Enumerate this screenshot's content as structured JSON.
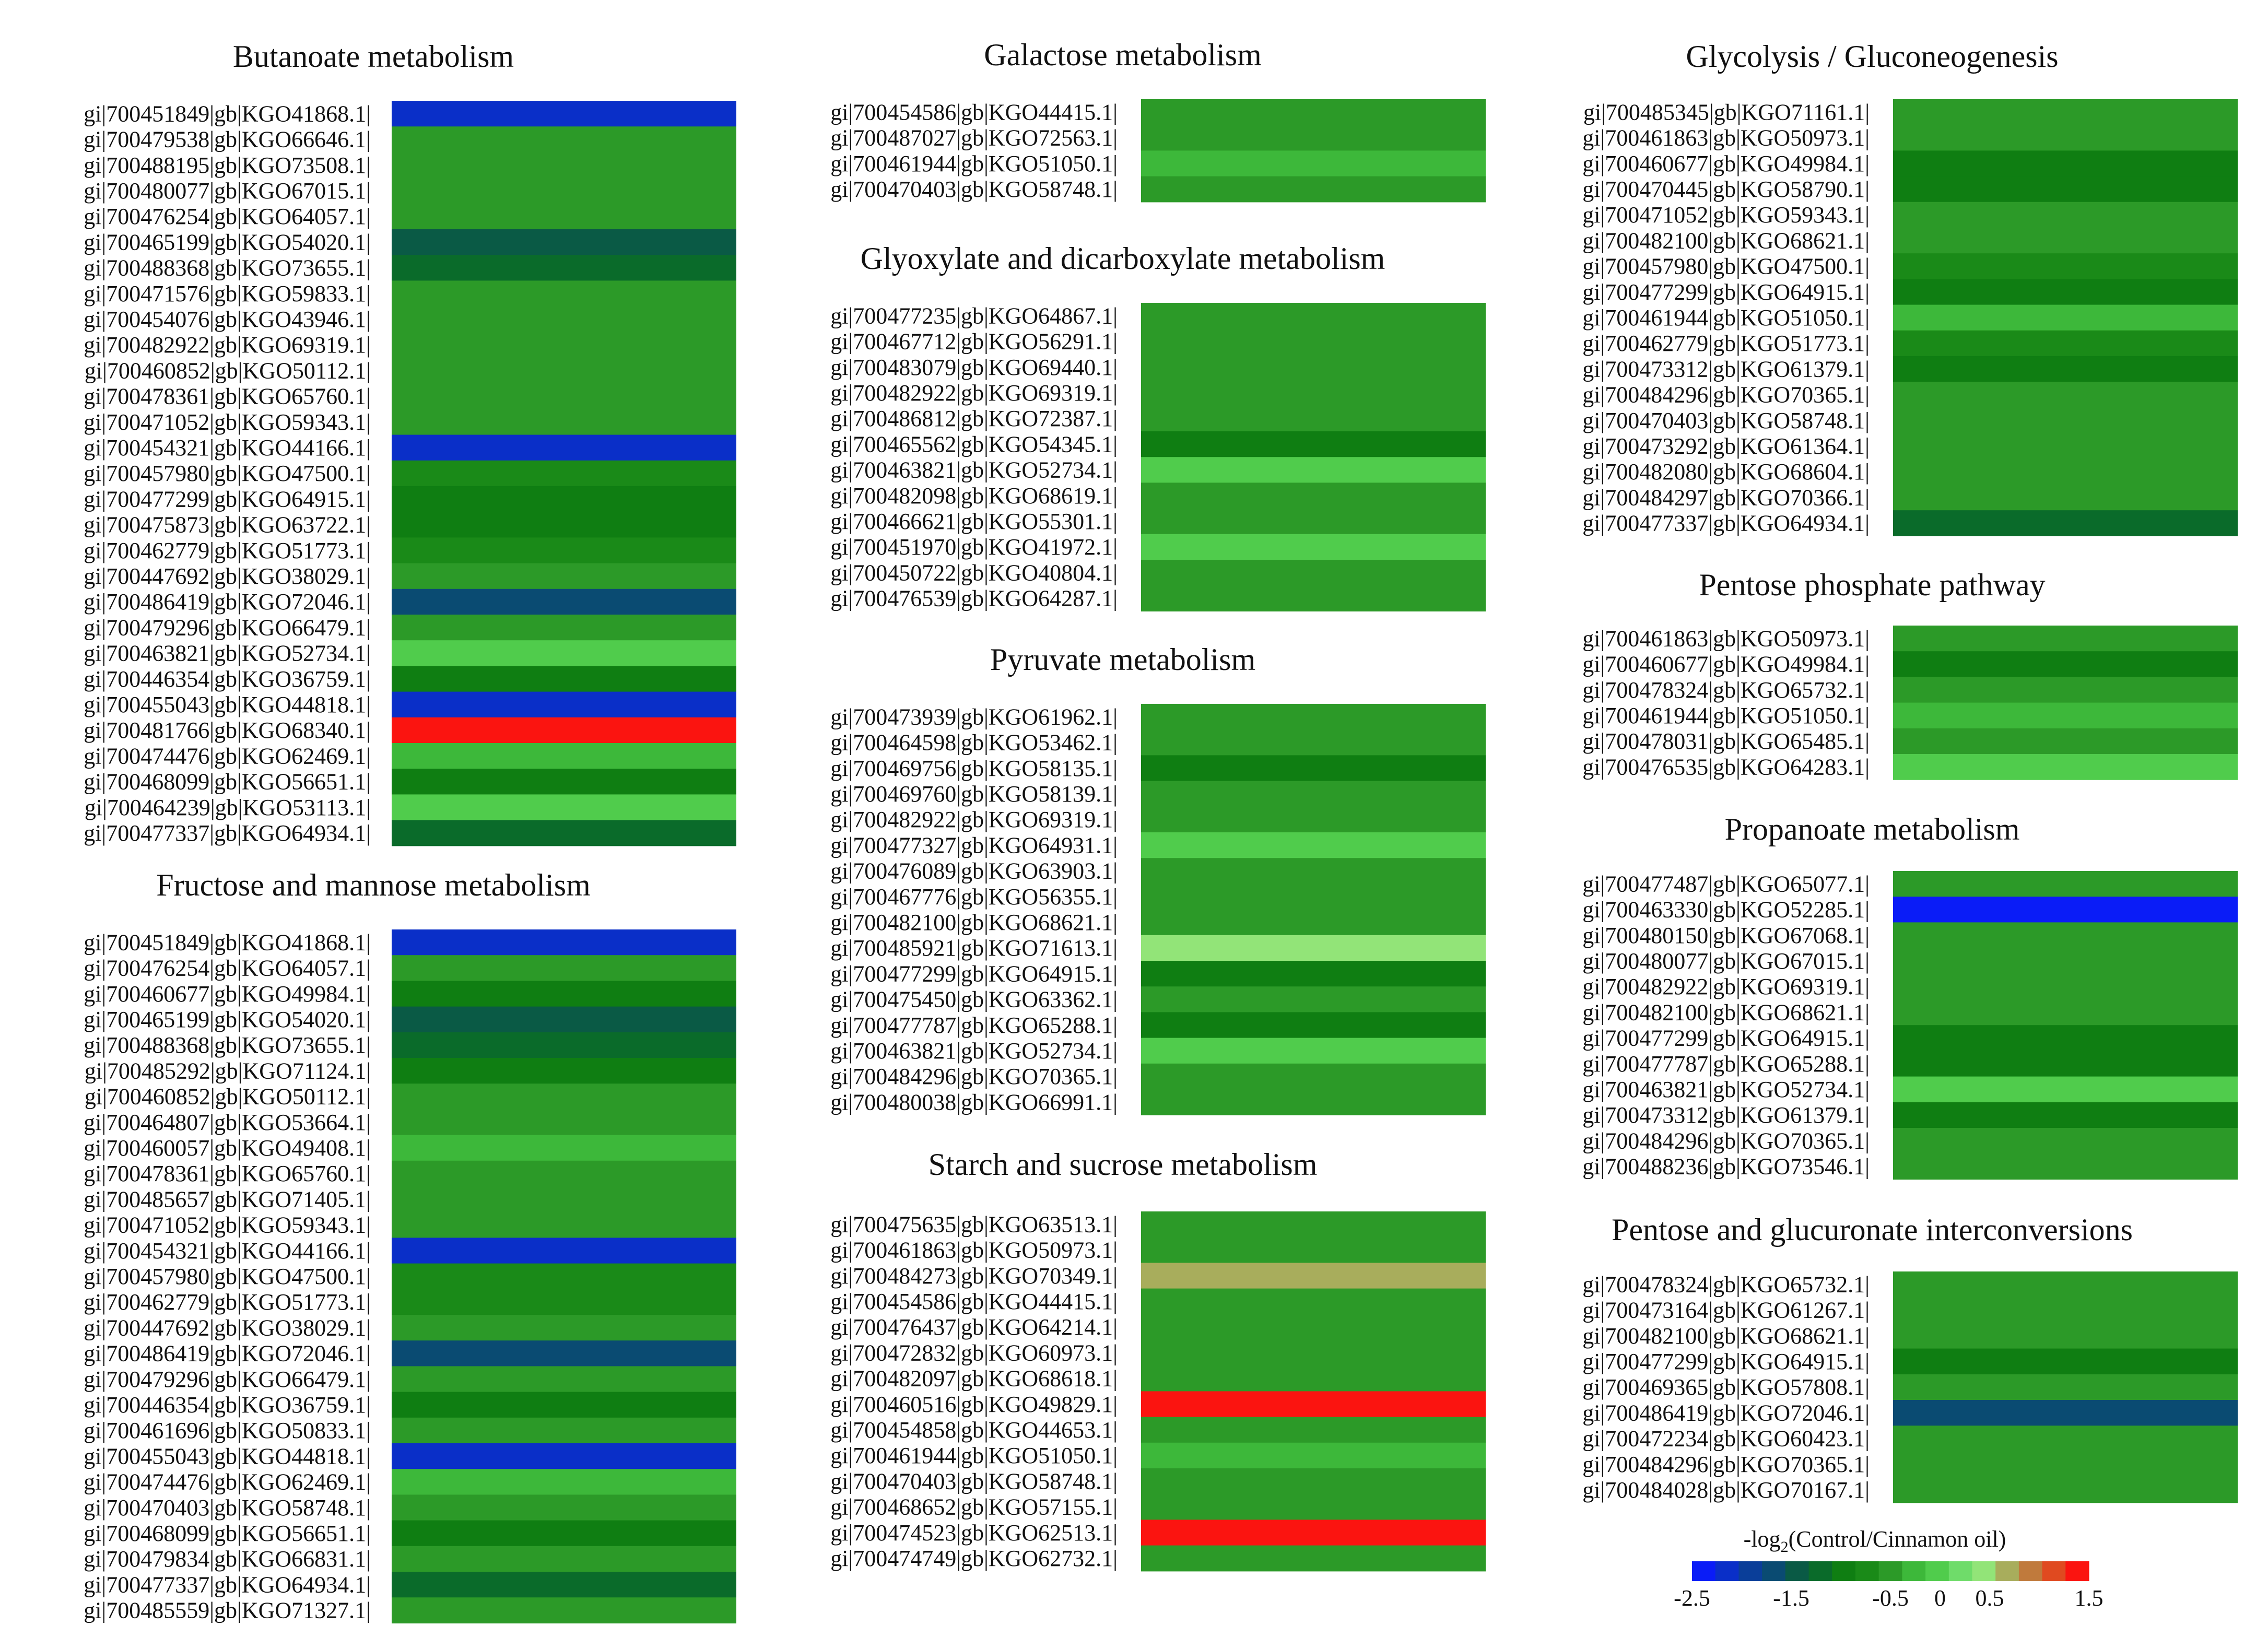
{
  "chart_data": {
    "type": "heatmap",
    "panels": [
      {
        "id": "butanoate",
        "title": "Butanoate metabolism",
        "rows": [
          {
            "label": "gi|700451849|gb|KGO41868.1|",
            "value": -2.3
          },
          {
            "label": "gi|700479538|gb|KGO66646.1|",
            "value": -0.6
          },
          {
            "label": "gi|700488195|gb|KGO73508.1|",
            "value": -0.4
          },
          {
            "label": "gi|700480077|gb|KGO67015.1|",
            "value": -0.4
          },
          {
            "label": "gi|700476254|gb|KGO64057.1|",
            "value": -0.4
          },
          {
            "label": "gi|700465199|gb|KGO54020.1|",
            "value": -1.6
          },
          {
            "label": "gi|700488368|gb|KGO73655.1|",
            "value": -1.3
          },
          {
            "label": "gi|700471576|gb|KGO59833.1|",
            "value": -0.6
          },
          {
            "label": "gi|700454076|gb|KGO43946.1|",
            "value": -0.6
          },
          {
            "label": "gi|700482922|gb|KGO69319.1|",
            "value": -0.6
          },
          {
            "label": "gi|700460852|gb|KGO50112.1|",
            "value": -0.6
          },
          {
            "label": "gi|700478361|gb|KGO65760.1|",
            "value": -0.6
          },
          {
            "label": "gi|700471052|gb|KGO59343.1|",
            "value": -0.4
          },
          {
            "label": "gi|700454321|gb|KGO44166.1|",
            "value": -2.3
          },
          {
            "label": "gi|700457980|gb|KGO47500.1|",
            "value": -0.7
          },
          {
            "label": "gi|700477299|gb|KGO64915.1|",
            "value": -1.0
          },
          {
            "label": "gi|700475873|gb|KGO63722.1|",
            "value": -1.0
          },
          {
            "label": "gi|700462779|gb|KGO51773.1|",
            "value": -0.7
          },
          {
            "label": "gi|700447692|gb|KGO38029.1|",
            "value": -0.5
          },
          {
            "label": "gi|700486419|gb|KGO72046.1|",
            "value": -1.7
          },
          {
            "label": "gi|700479296|gb|KGO66479.1|",
            "value": -0.4
          },
          {
            "label": "gi|700463821|gb|KGO52734.1|",
            "value": 0.1
          },
          {
            "label": "gi|700446354|gb|KGO36759.1|",
            "value": -1.0
          },
          {
            "label": "gi|700455043|gb|KGO44818.1|",
            "value": -2.3
          },
          {
            "label": "gi|700481766|gb|KGO68340.1|",
            "value": 1.5
          },
          {
            "label": "gi|700474476|gb|KGO62469.1|",
            "value": -0.2
          },
          {
            "label": "gi|700468099|gb|KGO56651.1|",
            "value": -1.0
          },
          {
            "label": "gi|700464239|gb|KGO53113.1|",
            "value": 0.1
          },
          {
            "label": "gi|700477337|gb|KGO64934.1|",
            "value": -1.3
          }
        ]
      },
      {
        "id": "fructose",
        "title": "Fructose and mannose metabolism",
        "rows": [
          {
            "label": "gi|700451849|gb|KGO41868.1|",
            "value": -2.3
          },
          {
            "label": "gi|700476254|gb|KGO64057.1|",
            "value": -0.4
          },
          {
            "label": "gi|700460677|gb|KGO49984.1|",
            "value": -1.0
          },
          {
            "label": "gi|700465199|gb|KGO54020.1|",
            "value": -1.6
          },
          {
            "label": "gi|700488368|gb|KGO73655.1|",
            "value": -1.3
          },
          {
            "label": "gi|700485292|gb|KGO71124.1|",
            "value": -1.0
          },
          {
            "label": "gi|700460852|gb|KGO50112.1|",
            "value": -0.6
          },
          {
            "label": "gi|700464807|gb|KGO53664.1|",
            "value": -0.6
          },
          {
            "label": "gi|700460057|gb|KGO49408.1|",
            "value": -0.2
          },
          {
            "label": "gi|700478361|gb|KGO65760.1|",
            "value": -0.6
          },
          {
            "label": "gi|700485657|gb|KGO71405.1|",
            "value": -0.4
          },
          {
            "label": "gi|700471052|gb|KGO59343.1|",
            "value": -0.4
          },
          {
            "label": "gi|700454321|gb|KGO44166.1|",
            "value": -2.3
          },
          {
            "label": "gi|700457980|gb|KGO47500.1|",
            "value": -0.7
          },
          {
            "label": "gi|700462779|gb|KGO51773.1|",
            "value": -0.7
          },
          {
            "label": "gi|700447692|gb|KGO38029.1|",
            "value": -0.5
          },
          {
            "label": "gi|700486419|gb|KGO72046.1|",
            "value": -1.7
          },
          {
            "label": "gi|700479296|gb|KGO66479.1|",
            "value": -0.4
          },
          {
            "label": "gi|700446354|gb|KGO36759.1|",
            "value": -1.0
          },
          {
            "label": "gi|700461696|gb|KGO50833.1|",
            "value": -0.6
          },
          {
            "label": "gi|700455043|gb|KGO44818.1|",
            "value": -2.3
          },
          {
            "label": "gi|700474476|gb|KGO62469.1|",
            "value": -0.2
          },
          {
            "label": "gi|700470403|gb|KGO58748.1|",
            "value": -0.4
          },
          {
            "label": "gi|700468099|gb|KGO56651.1|",
            "value": -1.0
          },
          {
            "label": "gi|700479834|gb|KGO66831.1|",
            "value": -0.6
          },
          {
            "label": "gi|700477337|gb|KGO64934.1|",
            "value": -1.3
          },
          {
            "label": "gi|700485559|gb|KGO71327.1|",
            "value": -0.4
          }
        ]
      },
      {
        "id": "galactose",
        "title": "Galactose metabolism",
        "rows": [
          {
            "label": "gi|700454586|gb|KGO44415.1|",
            "value": -0.6
          },
          {
            "label": "gi|700487027|gb|KGO72563.1|",
            "value": -0.6
          },
          {
            "label": "gi|700461944|gb|KGO51050.1|",
            "value": -0.2
          },
          {
            "label": "gi|700470403|gb|KGO58748.1|",
            "value": -0.4
          }
        ]
      },
      {
        "id": "glyoxylate",
        "title": "Glyoxylate and dicarboxylate metabolism",
        "rows": [
          {
            "label": "gi|700477235|gb|KGO64867.1|",
            "value": -0.6
          },
          {
            "label": "gi|700467712|gb|KGO56291.1|",
            "value": -0.4
          },
          {
            "label": "gi|700483079|gb|KGO69440.1|",
            "value": -0.6
          },
          {
            "label": "gi|700482922|gb|KGO69319.1|",
            "value": -0.6
          },
          {
            "label": "gi|700486812|gb|KGO72387.1|",
            "value": -0.4
          },
          {
            "label": "gi|700465562|gb|KGO54345.1|",
            "value": -1.0
          },
          {
            "label": "gi|700463821|gb|KGO52734.1|",
            "value": 0.1
          },
          {
            "label": "gi|700482098|gb|KGO68619.1|",
            "value": -0.6
          },
          {
            "label": "gi|700466621|gb|KGO55301.1|",
            "value": -0.4
          },
          {
            "label": "gi|700451970|gb|KGO41972.1|",
            "value": 0.1
          },
          {
            "label": "gi|700450722|gb|KGO40804.1|",
            "value": -0.4
          },
          {
            "label": "gi|700476539|gb|KGO64287.1|",
            "value": -0.6
          }
        ]
      },
      {
        "id": "pyruvate",
        "title": "Pyruvate metabolism",
        "rows": [
          {
            "label": "gi|700473939|gb|KGO61962.1|",
            "value": -0.4
          },
          {
            "label": "gi|700464598|gb|KGO53462.1|",
            "value": -0.6
          },
          {
            "label": "gi|700469756|gb|KGO58135.1|",
            "value": -1.0
          },
          {
            "label": "gi|700469760|gb|KGO58139.1|",
            "value": -0.6
          },
          {
            "label": "gi|700482922|gb|KGO69319.1|",
            "value": -0.6
          },
          {
            "label": "gi|700477327|gb|KGO64931.1|",
            "value": 0.1
          },
          {
            "label": "gi|700476089|gb|KGO63903.1|",
            "value": -0.6
          },
          {
            "label": "gi|700467776|gb|KGO56355.1|",
            "value": -0.4
          },
          {
            "label": "gi|700482100|gb|KGO68621.1|",
            "value": -0.4
          },
          {
            "label": "gi|700485921|gb|KGO71613.1|",
            "value": 0.5
          },
          {
            "label": "gi|700477299|gb|KGO64915.1|",
            "value": -1.0
          },
          {
            "label": "gi|700475450|gb|KGO63362.1|",
            "value": -0.6
          },
          {
            "label": "gi|700477787|gb|KGO65288.1|",
            "value": -1.0
          },
          {
            "label": "gi|700463821|gb|KGO52734.1|",
            "value": 0.1
          },
          {
            "label": "gi|700484296|gb|KGO70365.1|",
            "value": -0.6
          },
          {
            "label": "gi|700480038|gb|KGO66991.1|",
            "value": -0.6
          }
        ]
      },
      {
        "id": "starch",
        "title": "Starch and sucrose metabolism",
        "rows": [
          {
            "label": "gi|700475635|gb|KGO63513.1|",
            "value": -0.4
          },
          {
            "label": "gi|700461863|gb|KGO50973.1|",
            "value": -0.4
          },
          {
            "label": "gi|700484273|gb|KGO70349.1|",
            "value": 0.8
          },
          {
            "label": "gi|700454586|gb|KGO44415.1|",
            "value": -0.6
          },
          {
            "label": "gi|700476437|gb|KGO64214.1|",
            "value": -0.4
          },
          {
            "label": "gi|700472832|gb|KGO60973.1|",
            "value": -0.6
          },
          {
            "label": "gi|700482097|gb|KGO68618.1|",
            "value": -0.6
          },
          {
            "label": "gi|700460516|gb|KGO49829.1|",
            "value": 1.5
          },
          {
            "label": "gi|700454858|gb|KGO44653.1|",
            "value": -0.4
          },
          {
            "label": "gi|700461944|gb|KGO51050.1|",
            "value": -0.2
          },
          {
            "label": "gi|700470403|gb|KGO58748.1|",
            "value": -0.4
          },
          {
            "label": "gi|700468652|gb|KGO57155.1|",
            "value": -0.6
          },
          {
            "label": "gi|700474523|gb|KGO62513.1|",
            "value": 1.5
          },
          {
            "label": "gi|700474749|gb|KGO62732.1|",
            "value": -0.6
          }
        ]
      },
      {
        "id": "glycolysis",
        "title": "Glycolysis / Gluconeogenesis",
        "rows": [
          {
            "label": "gi|700485345|gb|KGO71161.1|",
            "value": -0.6
          },
          {
            "label": "gi|700461863|gb|KGO50973.1|",
            "value": -0.4
          },
          {
            "label": "gi|700460677|gb|KGO49984.1|",
            "value": -1.0
          },
          {
            "label": "gi|700470445|gb|KGO58790.1|",
            "value": -1.0
          },
          {
            "label": "gi|700471052|gb|KGO59343.1|",
            "value": -0.4
          },
          {
            "label": "gi|700482100|gb|KGO68621.1|",
            "value": -0.4
          },
          {
            "label": "gi|700457980|gb|KGO47500.1|",
            "value": -0.7
          },
          {
            "label": "gi|700477299|gb|KGO64915.1|",
            "value": -1.0
          },
          {
            "label": "gi|700461944|gb|KGO51050.1|",
            "value": -0.2
          },
          {
            "label": "gi|700462779|gb|KGO51773.1|",
            "value": -0.7
          },
          {
            "label": "gi|700473312|gb|KGO61379.1|",
            "value": -1.0
          },
          {
            "label": "gi|700484296|gb|KGO70365.1|",
            "value": -0.6
          },
          {
            "label": "gi|700470403|gb|KGO58748.1|",
            "value": -0.4
          },
          {
            "label": "gi|700473292|gb|KGO61364.1|",
            "value": -0.4
          },
          {
            "label": "gi|700482080|gb|KGO68604.1|",
            "value": -0.4
          },
          {
            "label": "gi|700484297|gb|KGO70366.1|",
            "value": -0.6
          },
          {
            "label": "gi|700477337|gb|KGO64934.1|",
            "value": -1.3
          }
        ]
      },
      {
        "id": "pentose_phosphate",
        "title": "Pentose phosphate pathway",
        "rows": [
          {
            "label": "gi|700461863|gb|KGO50973.1|",
            "value": -0.4
          },
          {
            "label": "gi|700460677|gb|KGO49984.1|",
            "value": -1.0
          },
          {
            "label": "gi|700478324|gb|KGO65732.1|",
            "value": -0.6
          },
          {
            "label": "gi|700461944|gb|KGO51050.1|",
            "value": -0.2
          },
          {
            "label": "gi|700478031|gb|KGO65485.1|",
            "value": -0.4
          },
          {
            "label": "gi|700476535|gb|KGO64283.1|",
            "value": 0.1
          }
        ]
      },
      {
        "id": "propanoate",
        "title": "Propanoate metabolism",
        "rows": [
          {
            "label": "gi|700477487|gb|KGO65077.1|",
            "value": -0.6
          },
          {
            "label": "gi|700463330|gb|KGO52285.1|",
            "value": -2.5
          },
          {
            "label": "gi|700480150|gb|KGO67068.1|",
            "value": -0.4
          },
          {
            "label": "gi|700480077|gb|KGO67015.1|",
            "value": -0.4
          },
          {
            "label": "gi|700482922|gb|KGO69319.1|",
            "value": -0.4
          },
          {
            "label": "gi|700482100|gb|KGO68621.1|",
            "value": -0.6
          },
          {
            "label": "gi|700477299|gb|KGO64915.1|",
            "value": -1.0
          },
          {
            "label": "gi|700477787|gb|KGO65288.1|",
            "value": -1.0
          },
          {
            "label": "gi|700463821|gb|KGO52734.1|",
            "value": 0.1
          },
          {
            "label": "gi|700473312|gb|KGO61379.1|",
            "value": -1.0
          },
          {
            "label": "gi|700484296|gb|KGO70365.1|",
            "value": -0.6
          },
          {
            "label": "gi|700488236|gb|KGO73546.1|",
            "value": -0.6
          }
        ]
      },
      {
        "id": "pentose_glucuronate",
        "title": "Pentose and glucuronate interconversions",
        "rows": [
          {
            "label": "gi|700478324|gb|KGO65732.1|",
            "value": -0.6
          },
          {
            "label": "gi|700473164|gb|KGO61267.1|",
            "value": -0.4
          },
          {
            "label": "gi|700482100|gb|KGO68621.1|",
            "value": -0.4
          },
          {
            "label": "gi|700477299|gb|KGO64915.1|",
            "value": -1.0
          },
          {
            "label": "gi|700469365|gb|KGO57808.1|",
            "value": -0.6
          },
          {
            "label": "gi|700486419|gb|KGO72046.1|",
            "value": -1.7
          },
          {
            "label": "gi|700472234|gb|KGO60423.1|",
            "value": -0.4
          },
          {
            "label": "gi|700484296|gb|KGO70365.1|",
            "value": -0.6
          },
          {
            "label": "gi|700484028|gb|KGO70167.1|",
            "value": -0.6
          }
        ]
      }
    ],
    "legend": {
      "title_main": "-log",
      "title_sub": "2",
      "title_rest": "(Control/Cinnamon oil)",
      "range": [
        -2.5,
        1.5
      ],
      "ticks": [
        {
          "label": "-2.5",
          "value": -2.5
        },
        {
          "label": "-1.5",
          "value": -1.5
        },
        {
          "label": "-0.5",
          "value": -0.5
        },
        {
          "label": "0",
          "value": 0
        },
        {
          "label": "0.5",
          "value": 0.5
        },
        {
          "label": "1.5",
          "value": 1.5
        }
      ],
      "colors": [
        "#0a1cf7",
        "#0a2fc8",
        "#0a3e99",
        "#0a4b72",
        "#0a5a45",
        "#0a6b2a",
        "#0f7e12",
        "#1a8a18",
        "#2c9a28",
        "#3db83a",
        "#50cc4c",
        "#6fdc6a",
        "#92e478",
        "#a8ad5c",
        "#c07a3c",
        "#e04a20",
        "#fb1410"
      ]
    }
  }
}
